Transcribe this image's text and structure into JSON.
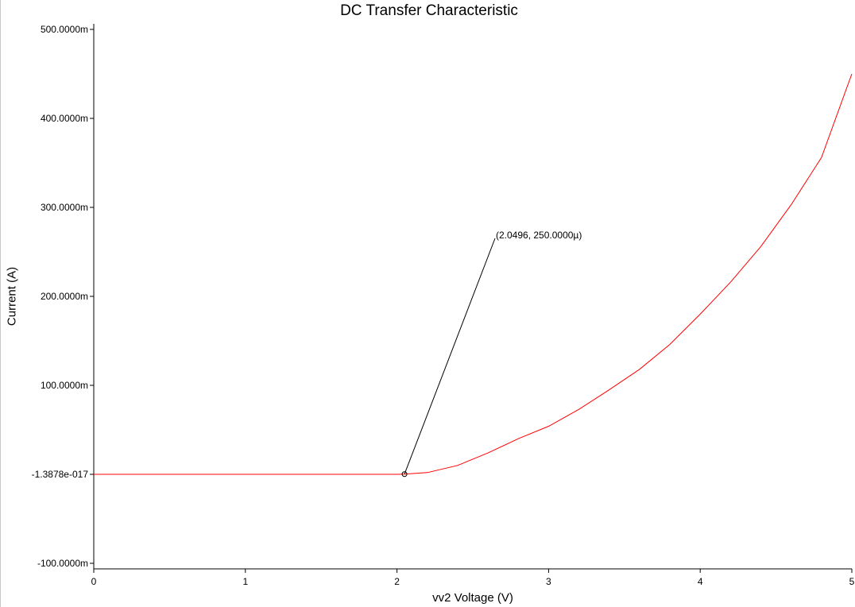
{
  "chart_data": {
    "type": "line",
    "title": "DC Transfer Characteristic",
    "xlabel": "vv2 Voltage (V)",
    "ylabel": "Current (A)",
    "xlim": [
      0,
      5
    ],
    "ylim": [
      -100,
      500
    ],
    "y_unit_note": "values in mA (m suffix)",
    "x_ticks": [
      0,
      1,
      2,
      3,
      4,
      5
    ],
    "x_tick_labels": [
      "0",
      "1",
      "2",
      "3",
      "4",
      "5"
    ],
    "y_ticks": [
      500,
      400,
      300,
      200,
      100,
      0,
      -100
    ],
    "y_tick_labels": [
      "500.0000m",
      "400.0000m",
      "300.0000m",
      "200.0000m",
      "100.0000m",
      "-1.3878e-017",
      "-100.0000m"
    ],
    "grid": false,
    "legend": "none",
    "series": [
      {
        "color": "#ff0000",
        "x": [
          0,
          0.5,
          1.0,
          1.5,
          2.0,
          2.05,
          2.2,
          2.4,
          2.6,
          2.8,
          3.0,
          3.2,
          3.4,
          3.6,
          3.8,
          4.0,
          4.2,
          4.4,
          4.6,
          4.8,
          5.0
        ],
        "y": [
          0,
          0,
          0,
          0,
          0,
          0.25,
          2,
          10,
          24,
          40,
          54,
          73,
          95,
          118,
          146,
          180,
          216,
          256,
          303,
          356,
          450
        ]
      }
    ],
    "annotations": [
      {
        "x": 2.0496,
        "y": 0.25,
        "text": "(2.0496, 250.0000µ)"
      }
    ]
  },
  "colors": {
    "series": "#ff0000",
    "axis": "#000000",
    "background": "#ffffff"
  }
}
